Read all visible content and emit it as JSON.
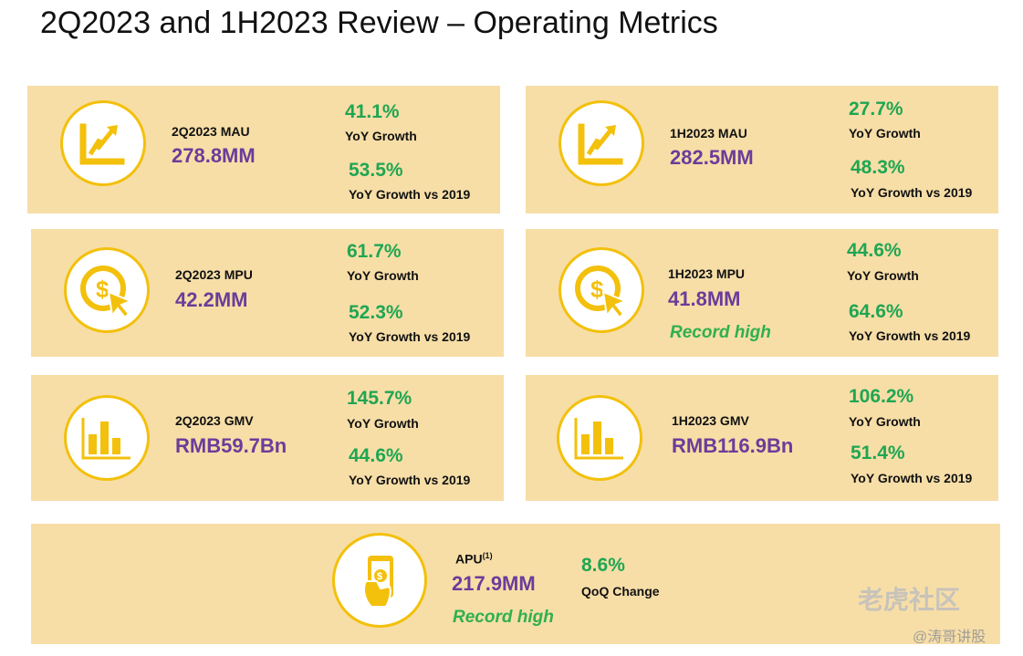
{
  "title": "2Q2023 and 1H2023 Review – Operating Metrics",
  "colors": {
    "card": "#f7dea7",
    "accent": "#f3c00b",
    "value": "#6a3d9a",
    "growth": "#1fa653"
  },
  "cards": {
    "mau_2q": {
      "icon": "growth-chart-icon",
      "label": "2Q2023 MAU",
      "value": "278.8MM",
      "growth1": "41.1%",
      "growth1_label": "YoY Growth",
      "growth2": "53.5%",
      "growth2_label": "YoY Growth vs 2019"
    },
    "mau_1h": {
      "icon": "growth-chart-icon",
      "label": "1H2023 MAU",
      "value": "282.5MM",
      "growth1": "27.7%",
      "growth1_label": "YoY Growth",
      "growth2": "48.3%",
      "growth2_label": "YoY Growth vs 2019"
    },
    "mpu_2q": {
      "icon": "dollar-cursor-icon",
      "label": "2Q2023 MPU",
      "value": "42.2MM",
      "growth1": "61.7%",
      "growth1_label": "YoY Growth",
      "growth2": "52.3%",
      "growth2_label": "YoY Growth vs 2019"
    },
    "mpu_1h": {
      "icon": "dollar-cursor-icon",
      "label": "1H2023 MPU",
      "value": "41.8MM",
      "note": "Record high",
      "growth1": "44.6%",
      "growth1_label": "YoY Growth",
      "growth2": "64.6%",
      "growth2_label": "YoY Growth vs 2019"
    },
    "gmv_2q": {
      "icon": "bar-chart-icon",
      "label": "2Q2023 GMV",
      "value": "RMB59.7Bn",
      "growth1": "145.7%",
      "growth1_label": "YoY Growth",
      "growth2": "44.6%",
      "growth2_label": "YoY Growth vs 2019"
    },
    "gmv_1h": {
      "icon": "bar-chart-icon",
      "label": "1H2023 GMV",
      "value": "RMB116.9Bn",
      "growth1": "106.2%",
      "growth1_label": "YoY Growth",
      "growth2": "51.4%",
      "growth2_label": "YoY Growth vs 2019"
    },
    "apu": {
      "icon": "phone-payment-icon",
      "label": "APU",
      "label_sup": "(1)",
      "value": "217.9MM",
      "note": "Record high",
      "growth1": "8.6%",
      "growth1_label": "QoQ Change"
    }
  },
  "watermark": {
    "main": "老虎社区",
    "handle": "@涛哥讲股"
  }
}
